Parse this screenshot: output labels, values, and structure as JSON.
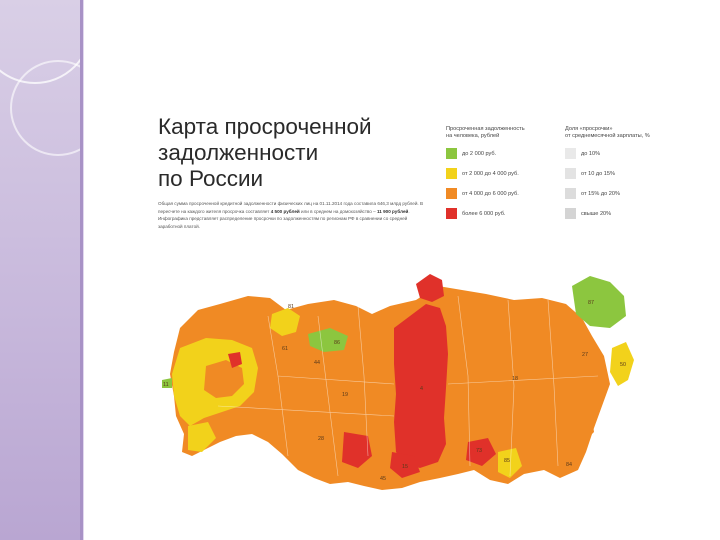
{
  "title_lines": [
    "Карта просроченной",
    "задолженности",
    "по России"
  ],
  "description": {
    "part1": "Общая сумма просроченной кредитной задолженности физических лиц на 01.11.2014 года составила 646,3 млрд рублей. В пересчете на каждого жителя просрочка составляет",
    "highlight1": "4 500 рублей",
    "part2": "или в среднем на домохозяйство –",
    "highlight2": "11 900 рублей",
    "part3": ". Инфографика представляет распределение просрочки по задолженностям по регионам РФ в сравнении со средней заработной платой."
  },
  "legend_debt": {
    "title_lines": [
      "Просроченная задолженность",
      "на человека, рублей"
    ],
    "items": [
      {
        "label": "до 2 000 руб.",
        "color": "#8cc63f"
      },
      {
        "label": "от 2 000 до 4 000 руб.",
        "color": "#f2d21b"
      },
      {
        "label": "от 4 000 до 6 000 руб.",
        "color": "#f08a24"
      },
      {
        "label": "более 6 000 руб.",
        "color": "#e0312a"
      }
    ]
  },
  "legend_share": {
    "title_lines": [
      "Доля «просрочки»",
      "от среднемесячной зарплаты, %"
    ],
    "items": [
      {
        "label": "до 10%",
        "color": "#e6e6e6"
      },
      {
        "label": "от 10 до 15%",
        "color": "#e6e6e6"
      },
      {
        "label": "от 15% до 20%",
        "color": "#e6e6e6"
      },
      {
        "label": "свыше 20%",
        "color": "#e6e6e6"
      }
    ]
  },
  "map": {
    "regions": [
      {
        "id": "87",
        "color": "#8cc63f",
        "label": "87"
      },
      {
        "id": "50",
        "color": "#f2d21b",
        "label": "50"
      },
      {
        "id": "27",
        "color": "#f08a24",
        "label": "27"
      },
      {
        "id": "18",
        "color": "#f08a24",
        "label": "18"
      },
      {
        "id": "4",
        "color": "#e0312a",
        "label": "4"
      },
      {
        "id": "19",
        "color": "#f08a24",
        "label": "19"
      },
      {
        "id": "44",
        "color": "#f08a24",
        "label": "44"
      },
      {
        "id": "81",
        "color": "#f08a24",
        "label": "81"
      },
      {
        "id": "86",
        "color": "#8cc63f",
        "label": "86"
      },
      {
        "id": "61",
        "color": "#f08a24",
        "label": "61"
      },
      {
        "id": "15",
        "color": "#e0312a",
        "label": "15"
      },
      {
        "id": "45",
        "color": "#f08a24",
        "label": "45"
      },
      {
        "id": "85",
        "color": "#f2d21b",
        "label": "85"
      },
      {
        "id": "73",
        "color": "#e0312a",
        "label": "73"
      },
      {
        "id": "84",
        "color": "#f08a24",
        "label": "84"
      },
      {
        "id": "28",
        "color": "#f08a24",
        "label": "28"
      },
      {
        "id": "11",
        "color": "#8cc63f",
        "label": "11"
      }
    ]
  }
}
